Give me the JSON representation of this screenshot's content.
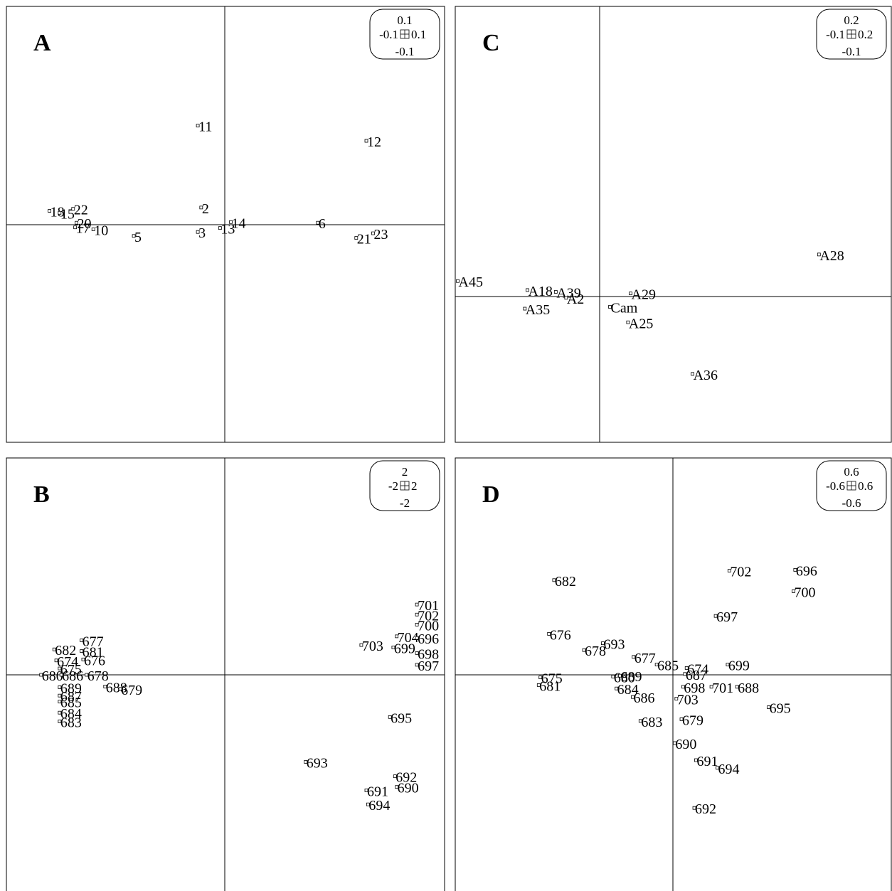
{
  "chart_data": [
    {
      "type": "scatter",
      "panel": "A",
      "scale_box": {
        "top": "0.1",
        "left": "-0.1",
        "right": "0.1",
        "bottom": "-0.1"
      },
      "x_range": [
        -0.32,
        0.33
      ],
      "y_range": [
        -0.33,
        0.33
      ],
      "points": [
        {
          "label": "11",
          "x": -0.04,
          "y": 0.15
        },
        {
          "label": "12",
          "x": 0.21,
          "y": 0.127
        },
        {
          "label": "18",
          "x": -0.26,
          "y": 0.021
        },
        {
          "label": "15",
          "x": -0.245,
          "y": 0.018
        },
        {
          "label": "22",
          "x": -0.225,
          "y": 0.024
        },
        {
          "label": "2",
          "x": -0.035,
          "y": 0.026
        },
        {
          "label": "20",
          "x": -0.22,
          "y": 0.003
        },
        {
          "label": "17",
          "x": -0.222,
          "y": -0.004
        },
        {
          "label": "10",
          "x": -0.195,
          "y": -0.007
        },
        {
          "label": "5",
          "x": -0.135,
          "y": -0.017
        },
        {
          "label": "3",
          "x": -0.04,
          "y": -0.011
        },
        {
          "label": "13",
          "x": -0.007,
          "y": -0.005
        },
        {
          "label": "14",
          "x": 0.009,
          "y": 0.004
        },
        {
          "label": "6",
          "x": 0.138,
          "y": 0.003
        },
        {
          "label": "21",
          "x": 0.195,
          "y": -0.02
        },
        {
          "label": "23",
          "x": 0.22,
          "y": -0.013
        }
      ]
    },
    {
      "type": "scatter",
      "panel": "B",
      "scale_box": {
        "top": "2",
        "left": "-2",
        "right": "2",
        "bottom": "-2"
      },
      "x_range": [
        -6.5,
        6.5
      ],
      "y_range": [
        -6.5,
        6.5
      ],
      "points": [
        {
          "label": "677",
          "x": -4.25,
          "y": 1.03
        },
        {
          "label": "682",
          "x": -5.06,
          "y": 0.76
        },
        {
          "label": "681",
          "x": -4.25,
          "y": 0.71
        },
        {
          "label": "674",
          "x": -5.0,
          "y": 0.43
        },
        {
          "label": "676",
          "x": -4.2,
          "y": 0.46
        },
        {
          "label": "675",
          "x": -4.9,
          "y": 0.19
        },
        {
          "label": "680",
          "x": -5.45,
          "y": -0.0
        },
        {
          "label": "686",
          "x": -4.85,
          "y": -0.0
        },
        {
          "label": "678",
          "x": -4.1,
          "y": 0.0
        },
        {
          "label": "689",
          "x": -4.9,
          "y": -0.37
        },
        {
          "label": "688",
          "x": -3.55,
          "y": -0.35
        },
        {
          "label": "679",
          "x": -3.1,
          "y": -0.42
        },
        {
          "label": "687",
          "x": -4.9,
          "y": -0.62
        },
        {
          "label": "685",
          "x": -4.9,
          "y": -0.8
        },
        {
          "label": "684",
          "x": -4.9,
          "y": -1.13
        },
        {
          "label": "683",
          "x": -4.9,
          "y": -1.39
        },
        {
          "label": "703",
          "x": 4.05,
          "y": 0.89
        },
        {
          "label": "699",
          "x": 5.0,
          "y": 0.82
        },
        {
          "label": "704",
          "x": 5.1,
          "y": 1.15
        },
        {
          "label": "701",
          "x": 5.7,
          "y": 2.1
        },
        {
          "label": "702",
          "x": 5.7,
          "y": 1.8
        },
        {
          "label": "700",
          "x": 5.7,
          "y": 1.5
        },
        {
          "label": "696",
          "x": 5.7,
          "y": 1.1
        },
        {
          "label": "698",
          "x": 5.7,
          "y": 0.65
        },
        {
          "label": "697",
          "x": 5.7,
          "y": 0.3
        },
        {
          "label": "695",
          "x": 4.9,
          "y": -1.26
        },
        {
          "label": "693",
          "x": 2.4,
          "y": -2.6
        },
        {
          "label": "692",
          "x": 5.05,
          "y": -3.03
        },
        {
          "label": "690",
          "x": 5.1,
          "y": -3.35
        },
        {
          "label": "691",
          "x": 4.2,
          "y": -3.45
        },
        {
          "label": "694",
          "x": 4.25,
          "y": -3.87
        }
      ]
    },
    {
      "type": "scatter",
      "panel": "C",
      "scale_box": {
        "top": "0.2",
        "left": "-0.1",
        "right": "0.2",
        "bottom": "-0.1"
      },
      "x_range": [
        -0.56,
        1.13
      ],
      "y_range": [
        -0.56,
        1.13
      ],
      "points": [
        {
          "label": "A28",
          "x": 0.85,
          "y": 0.163
        },
        {
          "label": "A45",
          "x": -0.55,
          "y": 0.06
        },
        {
          "label": "A18",
          "x": -0.28,
          "y": 0.025
        },
        {
          "label": "A39",
          "x": -0.17,
          "y": 0.018
        },
        {
          "label": "A2",
          "x": -0.13,
          "y": -0.005
        },
        {
          "label": "A29",
          "x": 0.12,
          "y": 0.012
        },
        {
          "label": "A35",
          "x": -0.29,
          "y": -0.047
        },
        {
          "label": "Cam",
          "x": 0.04,
          "y": -0.04
        },
        {
          "label": "A25",
          "x": 0.11,
          "y": -0.1
        },
        {
          "label": "A36",
          "x": 0.36,
          "y": -0.3
        }
      ]
    },
    {
      "type": "scatter",
      "panel": "D",
      "scale_box": {
        "top": "0.6",
        "left": "-0.6",
        "right": "0.6",
        "bottom": "-0.6"
      },
      "x_range": [
        -2.55,
        2.55
      ],
      "y_range": [
        -2.55,
        2.55
      ],
      "points": [
        {
          "label": "702",
          "x": 0.66,
          "y": 1.22
        },
        {
          "label": "696",
          "x": 1.43,
          "y": 1.23
        },
        {
          "label": "682",
          "x": -1.39,
          "y": 1.11
        },
        {
          "label": "700",
          "x": 1.41,
          "y": 0.98
        },
        {
          "label": "697",
          "x": 0.5,
          "y": 0.69
        },
        {
          "label": "676",
          "x": -1.45,
          "y": 0.48
        },
        {
          "label": "678",
          "x": -1.04,
          "y": 0.29
        },
        {
          "label": "693",
          "x": -0.82,
          "y": 0.37
        },
        {
          "label": "677",
          "x": -0.46,
          "y": 0.21
        },
        {
          "label": "685",
          "x": -0.19,
          "y": 0.12
        },
        {
          "label": "674",
          "x": 0.16,
          "y": 0.08
        },
        {
          "label": "687",
          "x": 0.14,
          "y": 0.01
        },
        {
          "label": "699",
          "x": 0.64,
          "y": 0.12
        },
        {
          "label": "675",
          "x": -1.55,
          "y": -0.03
        },
        {
          "label": "681",
          "x": -1.57,
          "y": -0.12
        },
        {
          "label": "680",
          "x": -0.7,
          "y": -0.02
        },
        {
          "label": "689",
          "x": -0.62,
          "y": -0.01
        },
        {
          "label": "698",
          "x": 0.12,
          "y": -0.14
        },
        {
          "label": "701",
          "x": 0.45,
          "y": -0.14
        },
        {
          "label": "688",
          "x": 0.75,
          "y": -0.14
        },
        {
          "label": "684",
          "x": -0.66,
          "y": -0.16
        },
        {
          "label": "686",
          "x": -0.47,
          "y": -0.26
        },
        {
          "label": "703",
          "x": 0.04,
          "y": -0.28
        },
        {
          "label": "695",
          "x": 1.12,
          "y": -0.38
        },
        {
          "label": "683",
          "x": -0.38,
          "y": -0.54
        },
        {
          "label": "679",
          "x": 0.1,
          "y": -0.52
        },
        {
          "label": "690",
          "x": 0.02,
          "y": -0.8
        },
        {
          "label": "691",
          "x": 0.27,
          "y": -1.0
        },
        {
          "label": "694",
          "x": 0.52,
          "y": -1.09
        },
        {
          "label": "692",
          "x": 0.25,
          "y": -1.56
        }
      ]
    }
  ]
}
